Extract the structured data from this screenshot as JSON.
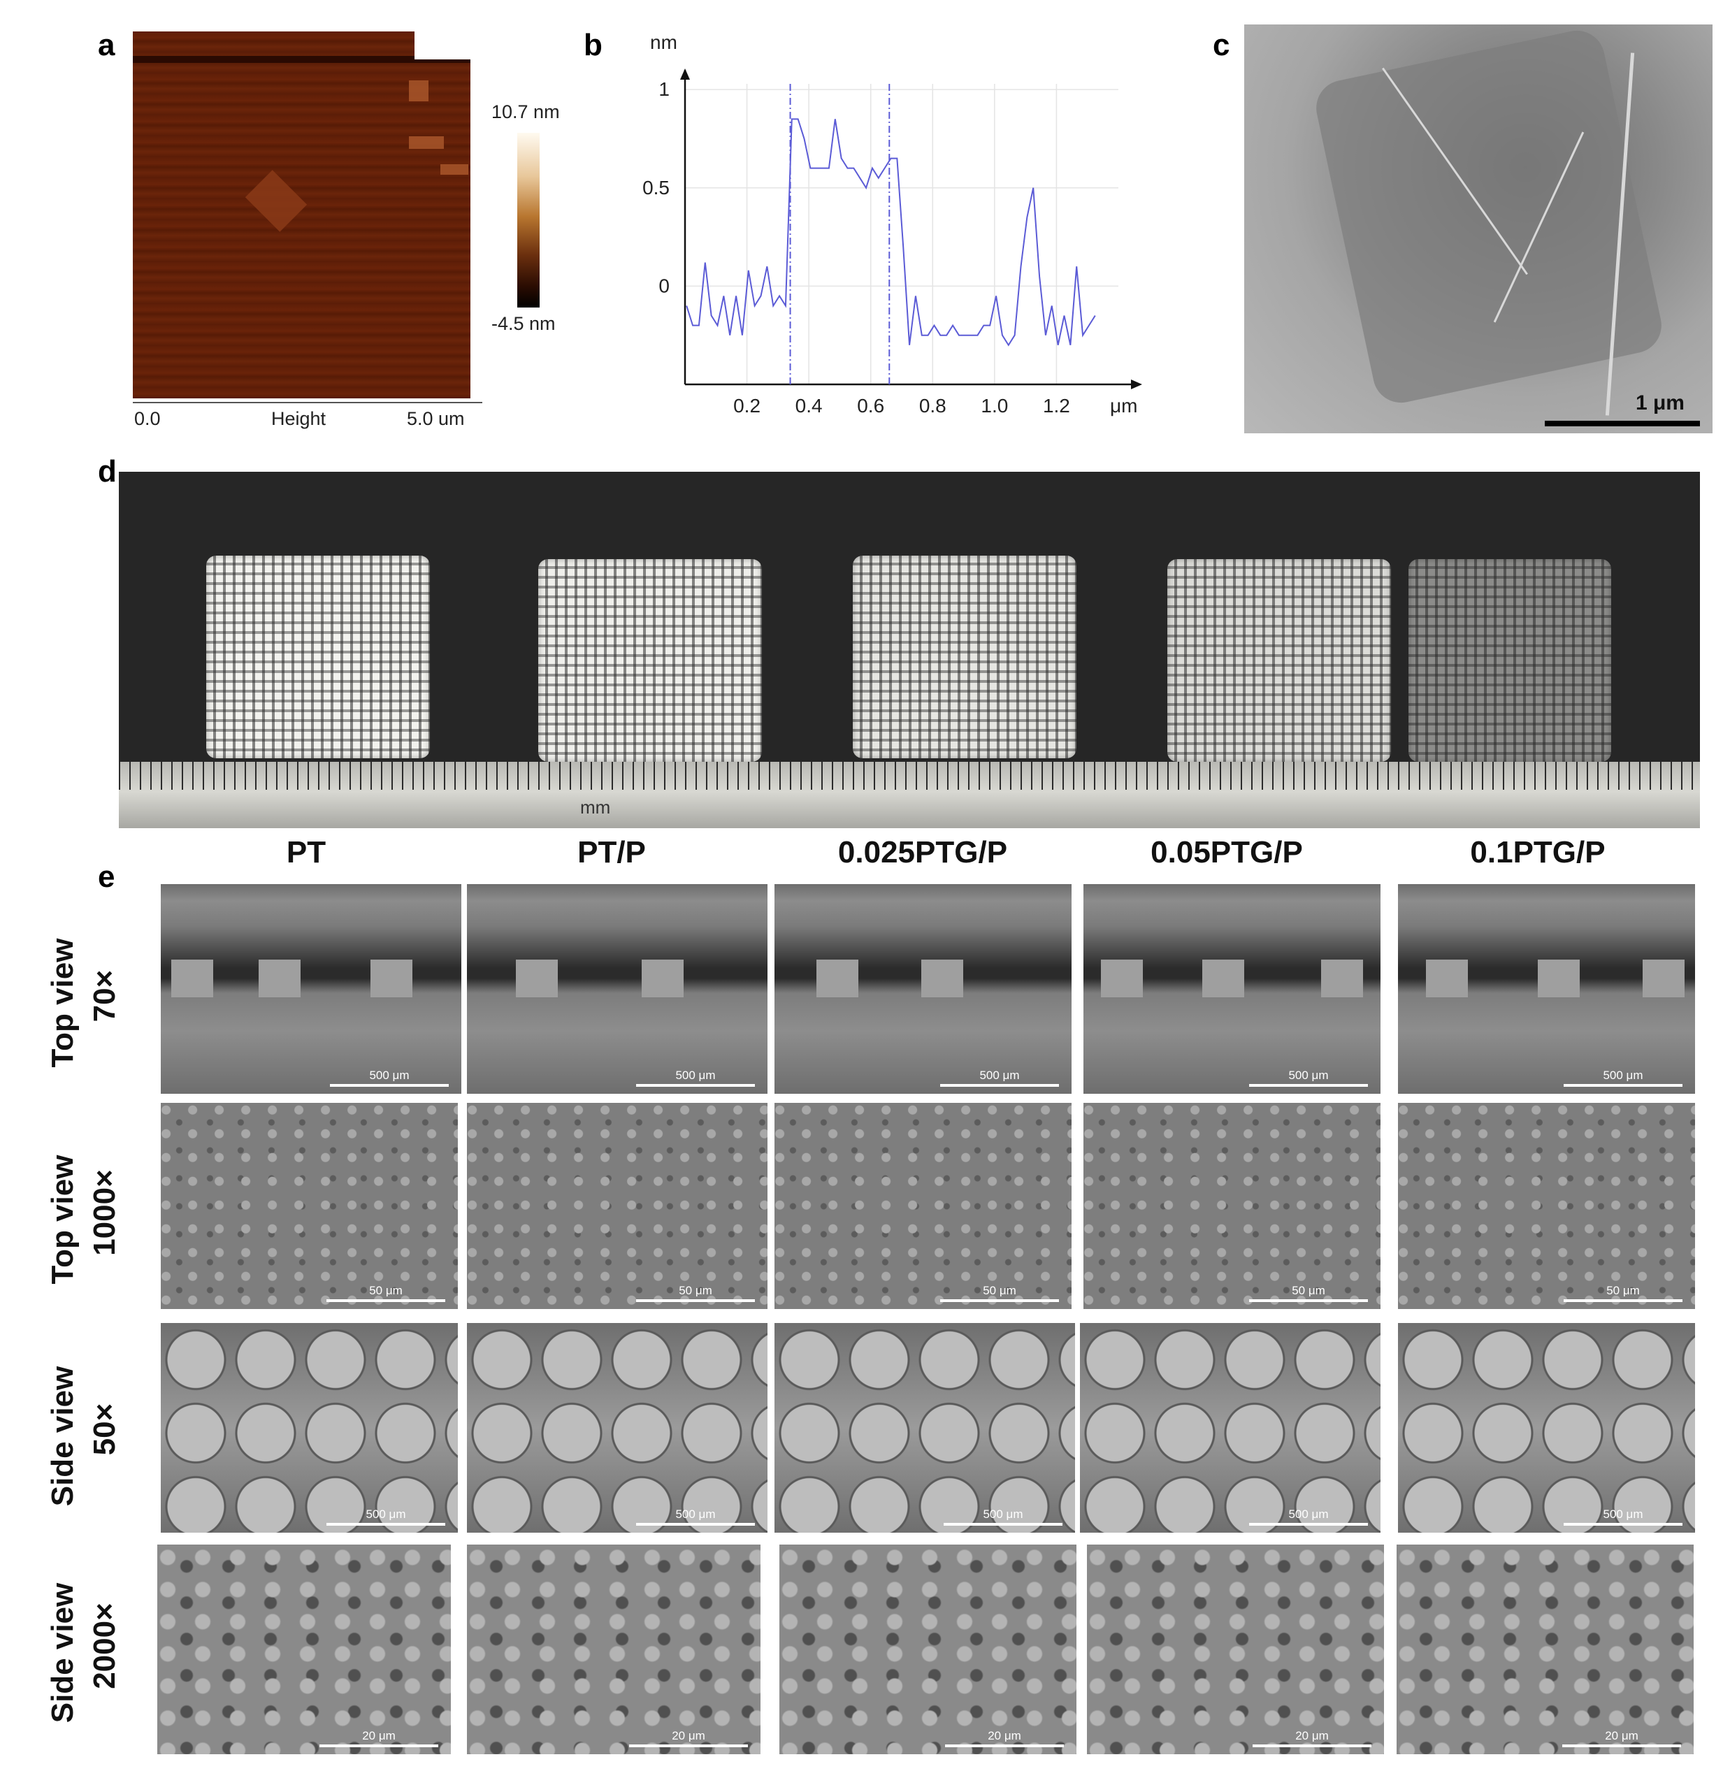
{
  "panels": {
    "a": {
      "letter": "a",
      "colorbar_max": "10.7 nm",
      "colorbar_min": "-4.5 nm",
      "x_start": "0.0",
      "x_label": "Height",
      "x_end": "5.0 um"
    },
    "b": {
      "letter": "b",
      "y_unit": "nm",
      "x_unit": "μm",
      "y_ticks": [
        "1",
        "0.5",
        "0"
      ],
      "x_ticks": [
        "0.2",
        "0.4",
        "0.6",
        "0.8",
        "1.0",
        "1.2"
      ]
    },
    "c": {
      "letter": "c",
      "scale_label": "1 μm"
    },
    "d": {
      "letter": "d",
      "ruler_unit": "mm"
    },
    "e": {
      "letter": "e",
      "columns": [
        "PT",
        "PT/P",
        "0.025PTG/P",
        "0.05PTG/P",
        "0.1PTG/P"
      ],
      "rows": [
        {
          "view": "Top view",
          "mag": "70×",
          "scale": "500 μm"
        },
        {
          "view": "Top view",
          "mag": "1000×",
          "scale": "50 μm"
        },
        {
          "view": "Side view",
          "mag": "50×",
          "scale": "500 μm"
        },
        {
          "view": "Side view",
          "mag": "2000×",
          "scale": "20 μm"
        }
      ]
    }
  },
  "chart_data": {
    "type": "line",
    "title": "",
    "xlabel": "μm",
    "ylabel": "nm",
    "xlim": [
      0,
      1.4
    ],
    "ylim": [
      -0.5,
      1.1
    ],
    "x_ticks": [
      0.2,
      0.4,
      0.6,
      0.8,
      1.0,
      1.2
    ],
    "y_ticks": [
      0,
      0.5,
      1
    ],
    "grid": true,
    "vlines": [
      0.34,
      0.66
    ],
    "series": [
      {
        "color": "#5b5bd6",
        "x": [
          0.0,
          0.02,
          0.04,
          0.06,
          0.08,
          0.1,
          0.12,
          0.14,
          0.16,
          0.18,
          0.2,
          0.22,
          0.24,
          0.26,
          0.28,
          0.3,
          0.32,
          0.34,
          0.36,
          0.38,
          0.4,
          0.42,
          0.44,
          0.46,
          0.48,
          0.5,
          0.52,
          0.54,
          0.56,
          0.58,
          0.6,
          0.62,
          0.64,
          0.66,
          0.68,
          0.7,
          0.72,
          0.74,
          0.76,
          0.78,
          0.8,
          0.82,
          0.84,
          0.86,
          0.88,
          0.9,
          0.92,
          0.94,
          0.96,
          0.98,
          1.0,
          1.02,
          1.04,
          1.06,
          1.08,
          1.1,
          1.12,
          1.14,
          1.16,
          1.18,
          1.2,
          1.22,
          1.24,
          1.26,
          1.28,
          1.3,
          1.32
        ],
        "y": [
          -0.1,
          -0.2,
          -0.2,
          0.12,
          -0.15,
          -0.2,
          -0.05,
          -0.25,
          -0.05,
          -0.25,
          0.08,
          -0.1,
          -0.05,
          0.1,
          -0.1,
          -0.05,
          -0.1,
          0.85,
          0.85,
          0.75,
          0.6,
          0.6,
          0.6,
          0.6,
          0.85,
          0.65,
          0.6,
          0.6,
          0.55,
          0.5,
          0.6,
          0.55,
          0.6,
          0.65,
          0.65,
          0.2,
          -0.3,
          -0.05,
          -0.25,
          -0.25,
          -0.2,
          -0.25,
          -0.25,
          -0.2,
          -0.25,
          -0.25,
          -0.25,
          -0.25,
          -0.2,
          -0.2,
          -0.05,
          -0.25,
          -0.3,
          -0.25,
          0.1,
          0.35,
          0.5,
          0.05,
          -0.25,
          -0.1,
          -0.3,
          -0.15,
          -0.3,
          0.1,
          -0.25,
          -0.2,
          -0.15
        ]
      }
    ]
  }
}
